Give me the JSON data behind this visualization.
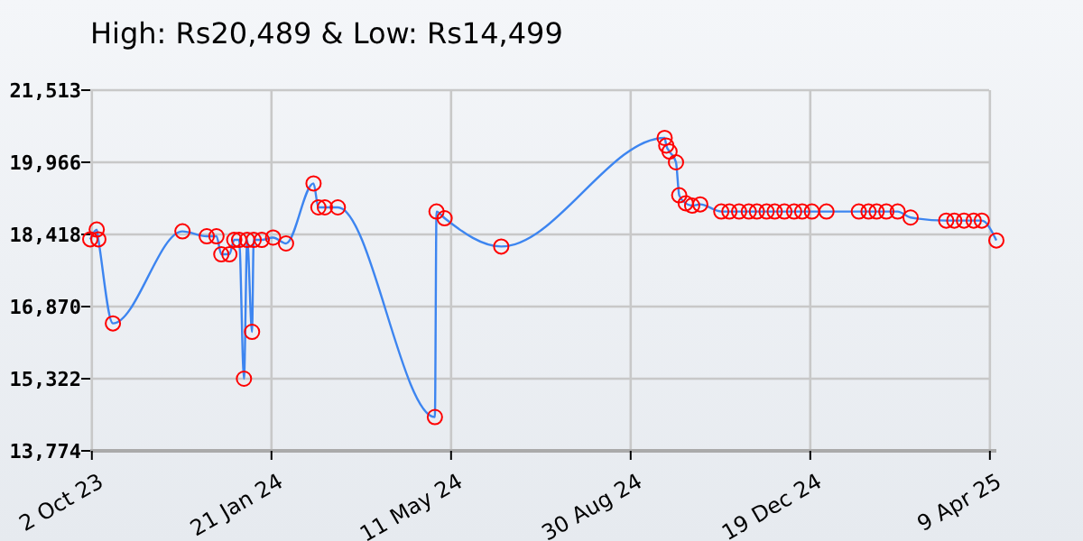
{
  "chart_data": {
    "type": "line",
    "title": "High: Rs20,489 & Low: Rs14,499",
    "x": [
      "2023-10-01",
      "2023-10-05",
      "2023-10-06",
      "2023-10-15",
      "2023-11-27",
      "2023-12-12",
      "2023-12-18",
      "2023-12-21",
      "2023-12-26",
      "2023-12-29",
      "2024-01-01",
      "2024-01-04",
      "2024-01-06",
      "2024-01-09",
      "2024-01-10",
      "2024-01-15",
      "2024-01-22",
      "2024-01-30",
      "2024-02-16",
      "2024-02-19",
      "2024-02-23",
      "2024-03-02",
      "2024-05-01",
      "2024-05-02",
      "2024-05-07",
      "2024-06-11",
      "2024-09-20",
      "2024-09-21",
      "2024-09-23",
      "2024-09-27",
      "2024-09-29",
      "2024-10-03",
      "2024-10-07",
      "2024-10-12",
      "2024-10-25",
      "2024-10-30",
      "2024-11-05",
      "2024-11-11",
      "2024-11-16",
      "2024-11-22",
      "2024-11-27",
      "2024-12-03",
      "2024-12-09",
      "2024-12-14",
      "2024-12-20",
      "2024-12-29",
      "2025-01-18",
      "2025-01-24",
      "2025-01-29",
      "2025-02-04",
      "2025-02-11",
      "2025-02-19",
      "2025-03-13",
      "2025-03-18",
      "2025-03-24",
      "2025-03-30",
      "2025-04-04",
      "2025-04-13"
    ],
    "series": [
      {
        "color": "#3d85f0",
        "colors": [
          "#ff0000",
          "#ff0000",
          "#ff0000",
          "#ff0000",
          "#ff0000",
          "#ff0000",
          "#ff0000",
          "#ff0000",
          "#ff0000",
          "#ff0000",
          "#ff0000",
          "#ff0000",
          "#ff0000",
          "#ff0000",
          "#ff0000",
          "#ff0000",
          "#ff0000",
          "#ff0000",
          "#ff0000",
          "#ff0000",
          "#ff0000",
          "#ff0000",
          "#ff0000",
          "#ff0000",
          "#ff0000",
          "#ff0000",
          "#ff0000",
          "#ff0000",
          "#ff0000",
          "#ff0000",
          "#ff0000",
          "#ff0000",
          "#ff0000",
          "#ff0000",
          "#ff0000",
          "#ff0000",
          "#ff0000",
          "#ff0000",
          "#ff0000",
          "#ff0000",
          "#ff0000",
          "#ff0000",
          "#ff0000",
          "#ff0000",
          "#ff0000",
          "#ff0000",
          "#ff0000",
          "#ff0000",
          "#ff0000",
          "#ff0000",
          "#ff0000",
          "#ff0000",
          "#ff0000",
          "#ff0000",
          "#ff0000",
          "#ff0000",
          "#ff0000",
          "#ff0000"
        ],
        "values": [
          18313,
          18522,
          18313,
          16509,
          18483,
          18378,
          18378,
          17991,
          17991,
          18300,
          18300,
          15322,
          18300,
          16327,
          18300,
          18300,
          18351,
          18224,
          19512,
          18998,
          18998,
          18998,
          14499,
          18909,
          18765,
          18158,
          20489,
          20325,
          20197,
          19965,
          19257,
          19087,
          19036,
          19063,
          18909,
          18909,
          18909,
          18909,
          18909,
          18909,
          18909,
          18909,
          18909,
          18909,
          18909,
          18909,
          18909,
          18909,
          18909,
          18909,
          18909,
          18780,
          18714,
          18714,
          18714,
          18714,
          18714,
          18289
        ]
      }
    ],
    "xlim": [
      "2023-10-01",
      "2025-04-13"
    ],
    "xticks": [
      {
        "value": "2023-10-02",
        "label": "2 Oct 23"
      },
      {
        "value": "2024-01-21",
        "label": "21 Jan 24"
      },
      {
        "value": "2024-05-11",
        "label": "11 May 24"
      },
      {
        "value": "2024-08-30",
        "label": "30 Aug 24"
      },
      {
        "value": "2024-12-19",
        "label": "19 Dec 24"
      },
      {
        "value": "2025-04-09",
        "label": "9 Apr 25"
      }
    ],
    "ylim": [
      13774,
      21513
    ],
    "yticks": [
      {
        "value": 13774,
        "label": "13,774"
      },
      {
        "value": 15322,
        "label": "15,322"
      },
      {
        "value": 16870,
        "label": "16,870"
      },
      {
        "value": 18418,
        "label": "18,418"
      },
      {
        "value": 19966,
        "label": "19,966"
      },
      {
        "value": 21513,
        "label": "21,513"
      }
    ],
    "grid": true,
    "marker": "circle",
    "line_style": "solid"
  }
}
